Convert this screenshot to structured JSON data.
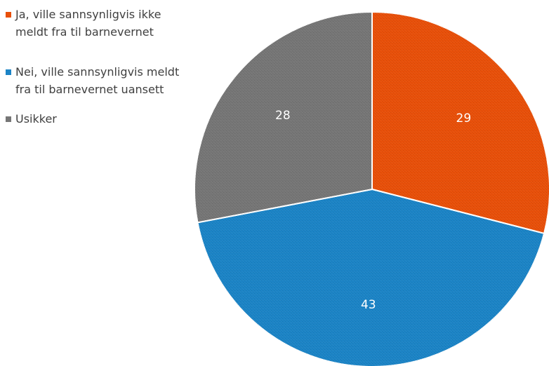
{
  "chart_data": {
    "type": "pie",
    "categories": [
      "Ja, ville sannsynligvis ikke meldt fra til barnevernet",
      "Nei, ville sannsynligvis meldt fra til barnevernet uansett",
      "Usikker"
    ],
    "values": [
      29,
      43,
      28
    ],
    "data_labels": [
      "29",
      "43",
      "28"
    ],
    "colors": [
      "#E8500A",
      "#1C84C6",
      "#767676"
    ],
    "start_angle_deg": 0,
    "direction": "clockwise",
    "legend_position": "left",
    "title": ""
  }
}
